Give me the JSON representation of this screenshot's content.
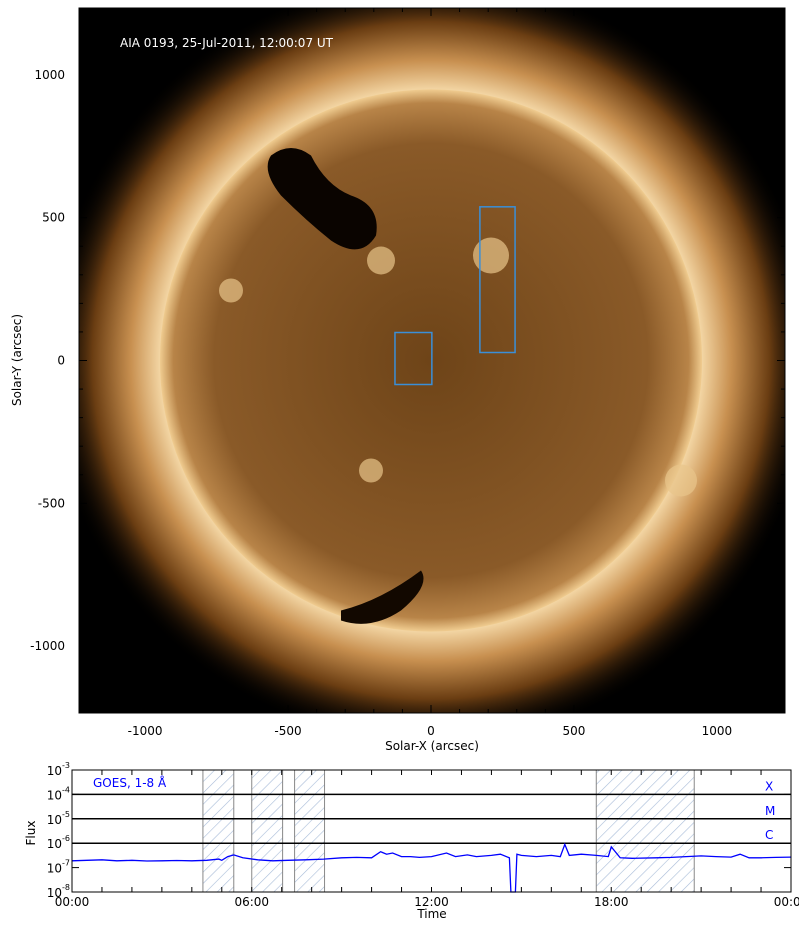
{
  "chart_data": [
    {
      "type": "image",
      "title": "AIA 0193, 25-Jul-2011, 12:00:07 UT",
      "xlabel": "Solar-X (arcsec)",
      "ylabel": "Solar-Y (arcsec)",
      "xlim": [
        -1231,
        1238
      ],
      "ylim": [
        -1234,
        1234
      ],
      "xticks": [
        -1000,
        -500,
        0,
        500,
        1000
      ],
      "yticks": [
        1000,
        500,
        0,
        -500,
        -1000
      ],
      "xtick_labels": [
        "-1000",
        "-500",
        "0",
        "500",
        "1000"
      ],
      "ytick_labels": [
        "1000",
        "500",
        "0",
        "-500",
        "-1000"
      ],
      "solar_radius_arcsec": 948,
      "colors": {
        "box": "#3a8fd8",
        "disk": "#8a5a28",
        "background": "#000000"
      },
      "boxes": [
        {
          "x": [
            -126,
            3
          ],
          "y": [
            -84,
            98
          ]
        },
        {
          "x": [
            171,
            294
          ],
          "y": [
            28,
            538
          ]
        }
      ]
    },
    {
      "type": "line",
      "title": "",
      "legend": "GOES, 1-8 Å",
      "xlabel": "Time",
      "ylabel": "Flux",
      "yscale": "log",
      "xlim": [
        0,
        24
      ],
      "ylim": [
        -8,
        -3
      ],
      "xtick_labels": [
        "00:00",
        "06:00",
        "12:00",
        "18:00",
        "00:00"
      ],
      "xticks": [
        0,
        6,
        12,
        18,
        24
      ],
      "yticks": [
        -8,
        -7,
        -6,
        -5,
        -4,
        -3
      ],
      "ytick_labels": [
        "10",
        "10",
        "10",
        "10",
        "10",
        "10"
      ],
      "ytick_exp": [
        "-8",
        "-7",
        "-6",
        "-5",
        "-4",
        "-3"
      ],
      "class_levels": [
        {
          "label": "X",
          "value": -4
        },
        {
          "label": "M",
          "value": -5
        },
        {
          "label": "C",
          "value": -6
        }
      ],
      "shaded_intervals": [
        [
          4.37,
          5.4
        ],
        [
          6.0,
          7.03
        ],
        [
          7.43,
          8.43
        ],
        [
          17.5,
          20.77
        ]
      ],
      "color": "#0000ff",
      "series": [
        {
          "x": [
            0,
            0.5,
            1,
            1.5,
            2,
            2.5,
            3,
            3.5,
            4,
            4.5,
            4.9,
            5.0,
            5.2,
            5.4,
            5.7,
            6.2,
            6.7,
            7.2,
            7.8,
            8.4,
            9,
            9.5,
            10,
            10.3,
            10.5,
            10.7,
            11,
            11.3,
            11.6,
            12,
            12.5,
            12.8,
            13.2,
            13.5,
            14,
            14.3,
            14.6,
            14.65,
            14.8,
            14.85,
            15,
            15.5,
            16,
            16.3,
            16.45,
            16.6,
            17,
            17.5,
            17.9,
            18.0,
            18.3,
            18.7,
            19.5,
            20,
            20.5,
            21,
            21.5,
            22,
            22.3,
            22.6,
            23,
            23.5,
            24
          ],
          "y": [
            -6.72,
            -6.7,
            -6.68,
            -6.72,
            -6.7,
            -6.73,
            -6.72,
            -6.71,
            -6.72,
            -6.7,
            -6.65,
            -6.7,
            -6.55,
            -6.48,
            -6.6,
            -6.68,
            -6.72,
            -6.7,
            -6.68,
            -6.65,
            -6.6,
            -6.58,
            -6.6,
            -6.35,
            -6.45,
            -6.4,
            -6.55,
            -6.55,
            -6.58,
            -6.55,
            -6.4,
            -6.55,
            -6.48,
            -6.55,
            -6.5,
            -6.45,
            -6.6,
            -8.0,
            -8.0,
            -6.45,
            -6.5,
            -6.55,
            -6.5,
            -6.55,
            -6.05,
            -6.5,
            -6.45,
            -6.5,
            -6.55,
            -6.15,
            -6.6,
            -6.62,
            -6.6,
            -6.58,
            -6.55,
            -6.52,
            -6.55,
            -6.57,
            -6.45,
            -6.6,
            -6.6,
            -6.58,
            -6.57
          ]
        }
      ]
    }
  ]
}
